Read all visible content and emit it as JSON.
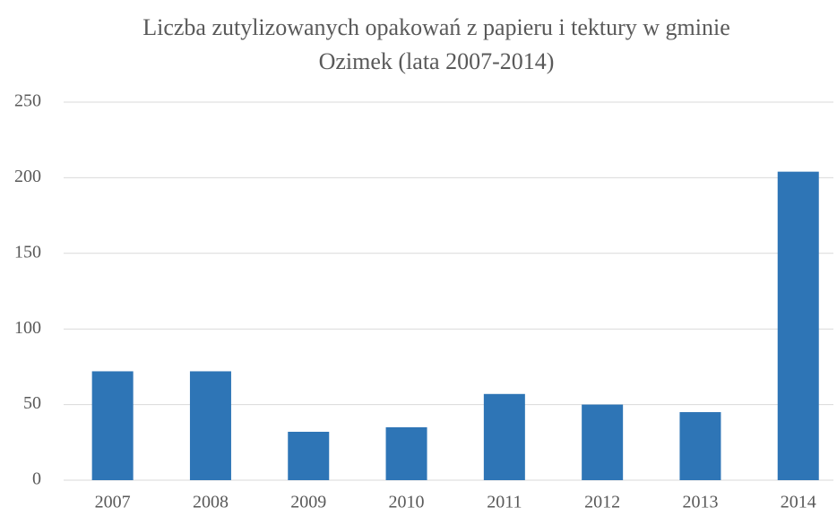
{
  "chart_data": {
    "type": "bar",
    "title": "Liczba zutylizowanych opakowań z papieru i tektury w gminie Ozimek (lata 2007-2014)",
    "categories": [
      "2007",
      "2008",
      "2009",
      "2010",
      "2011",
      "2012",
      "2013",
      "2014"
    ],
    "values": [
      72,
      72,
      32,
      35,
      57,
      50,
      45,
      204
    ],
    "color": "#2e75b6",
    "ylim": [
      0,
      250
    ],
    "yticks": [
      0,
      50,
      100,
      150,
      200,
      250
    ],
    "grid": true
  }
}
